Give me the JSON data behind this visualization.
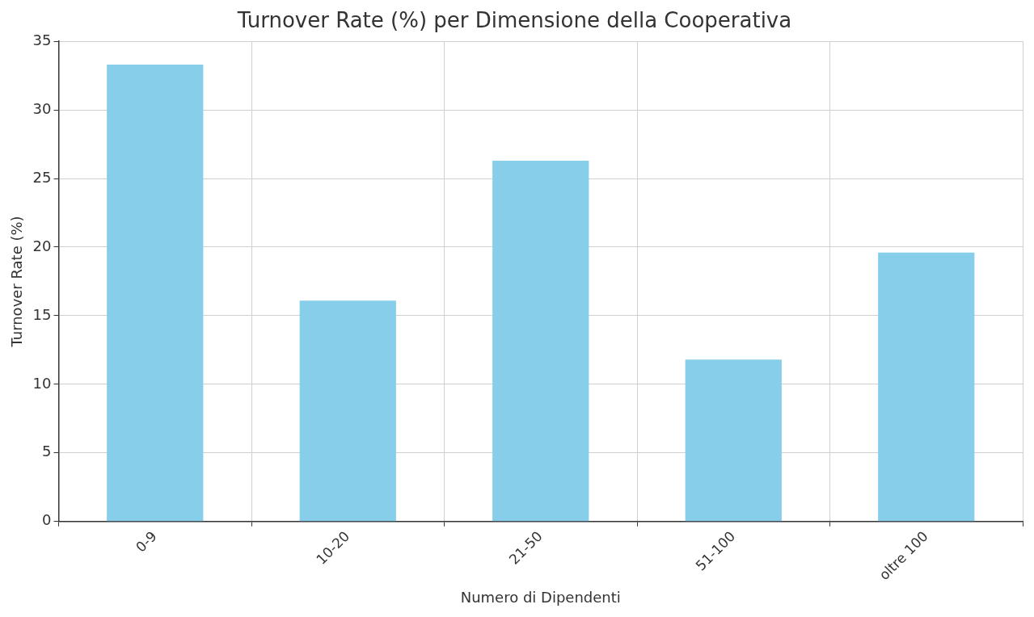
{
  "chart_data": {
    "type": "bar",
    "title": "Turnover Rate (%) per Dimensione della Cooperativa",
    "xlabel": "Numero di Dipendenti",
    "ylabel": "Turnover Rate (%)",
    "categories": [
      "0-9",
      "10-20",
      "21-50",
      "51-100",
      "oltre 100"
    ],
    "values": [
      33.3,
      16.1,
      26.3,
      11.8,
      19.6
    ],
    "color": "#87ceeb",
    "ylim": [
      0,
      35
    ],
    "yticks": [
      0,
      5,
      10,
      15,
      20,
      25,
      30,
      35
    ],
    "grid": true,
    "legend": false
  }
}
